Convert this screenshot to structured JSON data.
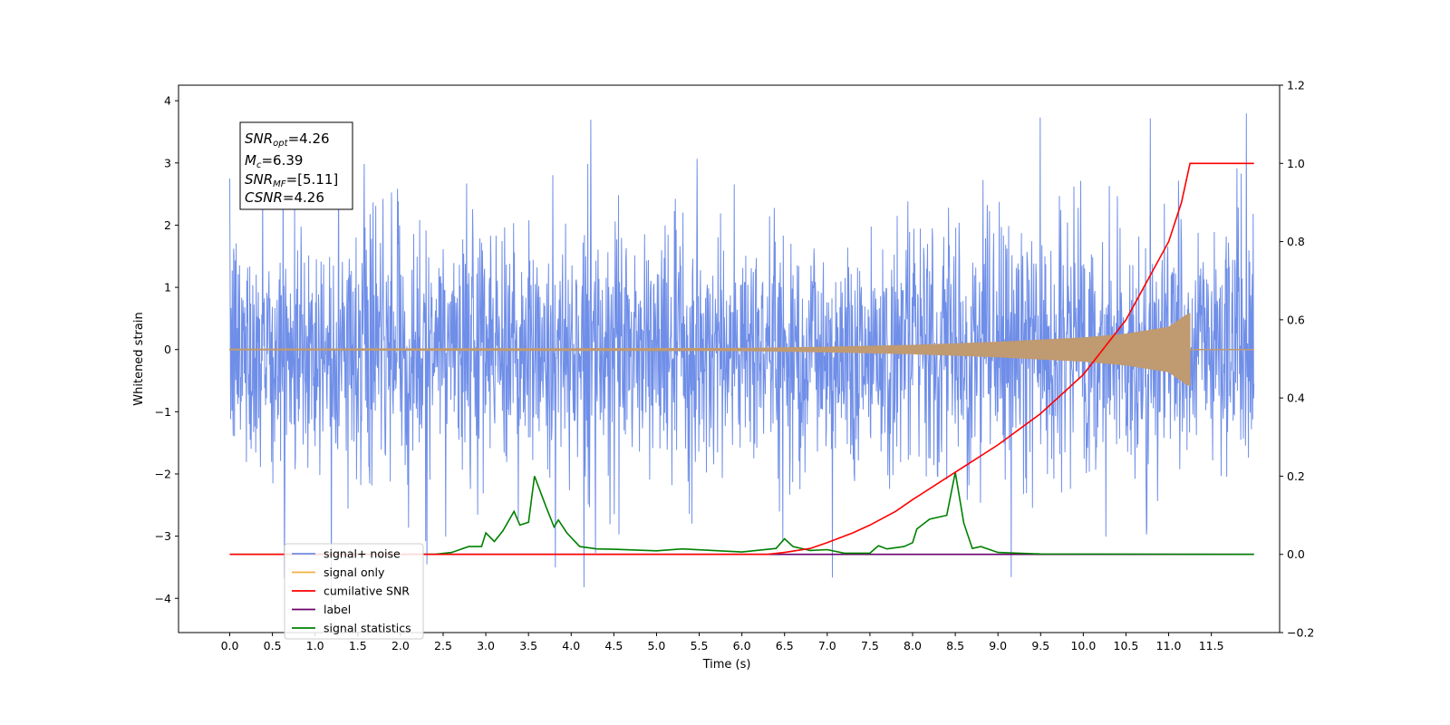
{
  "chart_data": {
    "type": "line",
    "title": "",
    "xlabel": "Time (s)",
    "ylabel_left": "Whitened strain",
    "ylabel_right": "",
    "xlim": [
      -0.6,
      12.3
    ],
    "ylim_left": [
      -4.55,
      4.25
    ],
    "ylim_right": [
      -0.2,
      1.2
    ],
    "grid": false,
    "x_ticks": [
      0.0,
      0.5,
      1.0,
      1.5,
      2.0,
      2.5,
      3.0,
      3.5,
      4.0,
      4.5,
      5.0,
      5.5,
      6.0,
      6.5,
      7.0,
      7.5,
      8.0,
      8.5,
      9.0,
      9.5,
      10.0,
      10.5,
      11.0,
      11.5
    ],
    "x_tick_labels": [
      "0.0",
      "0.5",
      "1.0",
      "1.5",
      "2.0",
      "2.5",
      "3.0",
      "3.5",
      "4.0",
      "4.5",
      "5.0",
      "5.5",
      "6.0",
      "6.5",
      "7.0",
      "7.5",
      "8.0",
      "8.5",
      "9.0",
      "9.5",
      "10.0",
      "10.5",
      "11.0",
      "11.5"
    ],
    "y_ticks_left": [
      -4,
      -3,
      -2,
      -1,
      0,
      1,
      2,
      3,
      4
    ],
    "y_tick_labels_left": [
      "−4",
      "−3",
      "−2",
      "−1",
      "0",
      "1",
      "2",
      "3",
      "4"
    ],
    "y_ticks_right": [
      -0.2,
      0.0,
      0.2,
      0.4,
      0.6,
      0.8,
      1.0,
      1.2
    ],
    "y_tick_labels_right": [
      "−0.2",
      "0.0",
      "0.2",
      "0.4",
      "0.6",
      "0.8",
      "1.0",
      "1.2"
    ],
    "legend_position": "lower-left",
    "annotation": {
      "snr_opt": {
        "symbol": "SNR",
        "sub": "opt",
        "value": "=4.26"
      },
      "mc": {
        "symbol": "M",
        "sub": "c",
        "value": "=6.39"
      },
      "snr_mf": {
        "symbol": "SNR",
        "sub": "MF",
        "value": "=[5.11]"
      },
      "csnr": {
        "symbol": "CSNR",
        "sub": "",
        "value": "=4.26"
      }
    },
    "series": [
      {
        "name": "signal+ noise",
        "axis": "left",
        "color": "#6f8ee8",
        "kind": "noise",
        "x_range": [
          0.0,
          12.0
        ],
        "typical_amplitude": 1.8,
        "max_value": 3.88,
        "min_value": -4.1
      },
      {
        "name": "signal only",
        "axis": "left",
        "color": "#f5b041",
        "kind": "chirp",
        "x_range": [
          0.0,
          11.25
        ],
        "x": [
          0.0,
          6.0,
          7.0,
          8.0,
          9.0,
          10.0,
          10.5,
          11.0,
          11.2,
          11.25
        ],
        "envelope": [
          0.01,
          0.02,
          0.04,
          0.07,
          0.12,
          0.19,
          0.25,
          0.36,
          0.55,
          0.58
        ]
      },
      {
        "name": "cumilative SNR",
        "axis": "right",
        "color": "#ff0000",
        "x": [
          0.0,
          6.3,
          6.5,
          6.8,
          7.0,
          7.3,
          7.5,
          7.8,
          8.0,
          8.5,
          9.0,
          9.5,
          10.0,
          10.5,
          11.0,
          11.15,
          11.25,
          12.0
        ],
        "values": [
          0.0,
          0.0,
          0.005,
          0.015,
          0.03,
          0.055,
          0.075,
          0.11,
          0.14,
          0.21,
          0.28,
          0.36,
          0.46,
          0.6,
          0.8,
          0.9,
          1.0,
          1.0
        ]
      },
      {
        "name": "label",
        "axis": "right",
        "color": "#6a006a",
        "x": [
          1.0,
          12.0
        ],
        "values": [
          0.0,
          0.0
        ]
      },
      {
        "name": "signal statistics",
        "axis": "right",
        "color": "#008000",
        "x": [
          0.0,
          2.4,
          2.6,
          2.8,
          2.95,
          3.0,
          3.1,
          3.2,
          3.33,
          3.4,
          3.5,
          3.57,
          3.7,
          3.8,
          3.85,
          3.95,
          4.1,
          4.3,
          4.5,
          5.0,
          5.3,
          6.0,
          6.4,
          6.5,
          6.6,
          6.8,
          7.0,
          7.2,
          7.5,
          7.6,
          7.7,
          7.9,
          8.0,
          8.05,
          8.2,
          8.4,
          8.5,
          8.6,
          8.7,
          8.8,
          9.0,
          9.5,
          12.0
        ],
        "values": [
          0.0,
          0.0,
          0.005,
          0.02,
          0.02,
          0.055,
          0.033,
          0.06,
          0.11,
          0.075,
          0.082,
          0.2,
          0.125,
          0.07,
          0.088,
          0.055,
          0.02,
          0.014,
          0.013,
          0.009,
          0.014,
          0.006,
          0.015,
          0.04,
          0.02,
          0.01,
          0.012,
          0.003,
          0.003,
          0.022,
          0.014,
          0.02,
          0.03,
          0.065,
          0.09,
          0.1,
          0.21,
          0.08,
          0.015,
          0.02,
          0.005,
          0.001,
          0.0
        ]
      }
    ],
    "legend": [
      {
        "label": "signal+ noise",
        "color": "#6f8ee8"
      },
      {
        "label": "signal only",
        "color": "#f5b041"
      },
      {
        "label": "cumilative SNR",
        "color": "#ff0000"
      },
      {
        "label": "label",
        "color": "#6a006a"
      },
      {
        "label": "signal statistics",
        "color": "#008000"
      }
    ]
  }
}
